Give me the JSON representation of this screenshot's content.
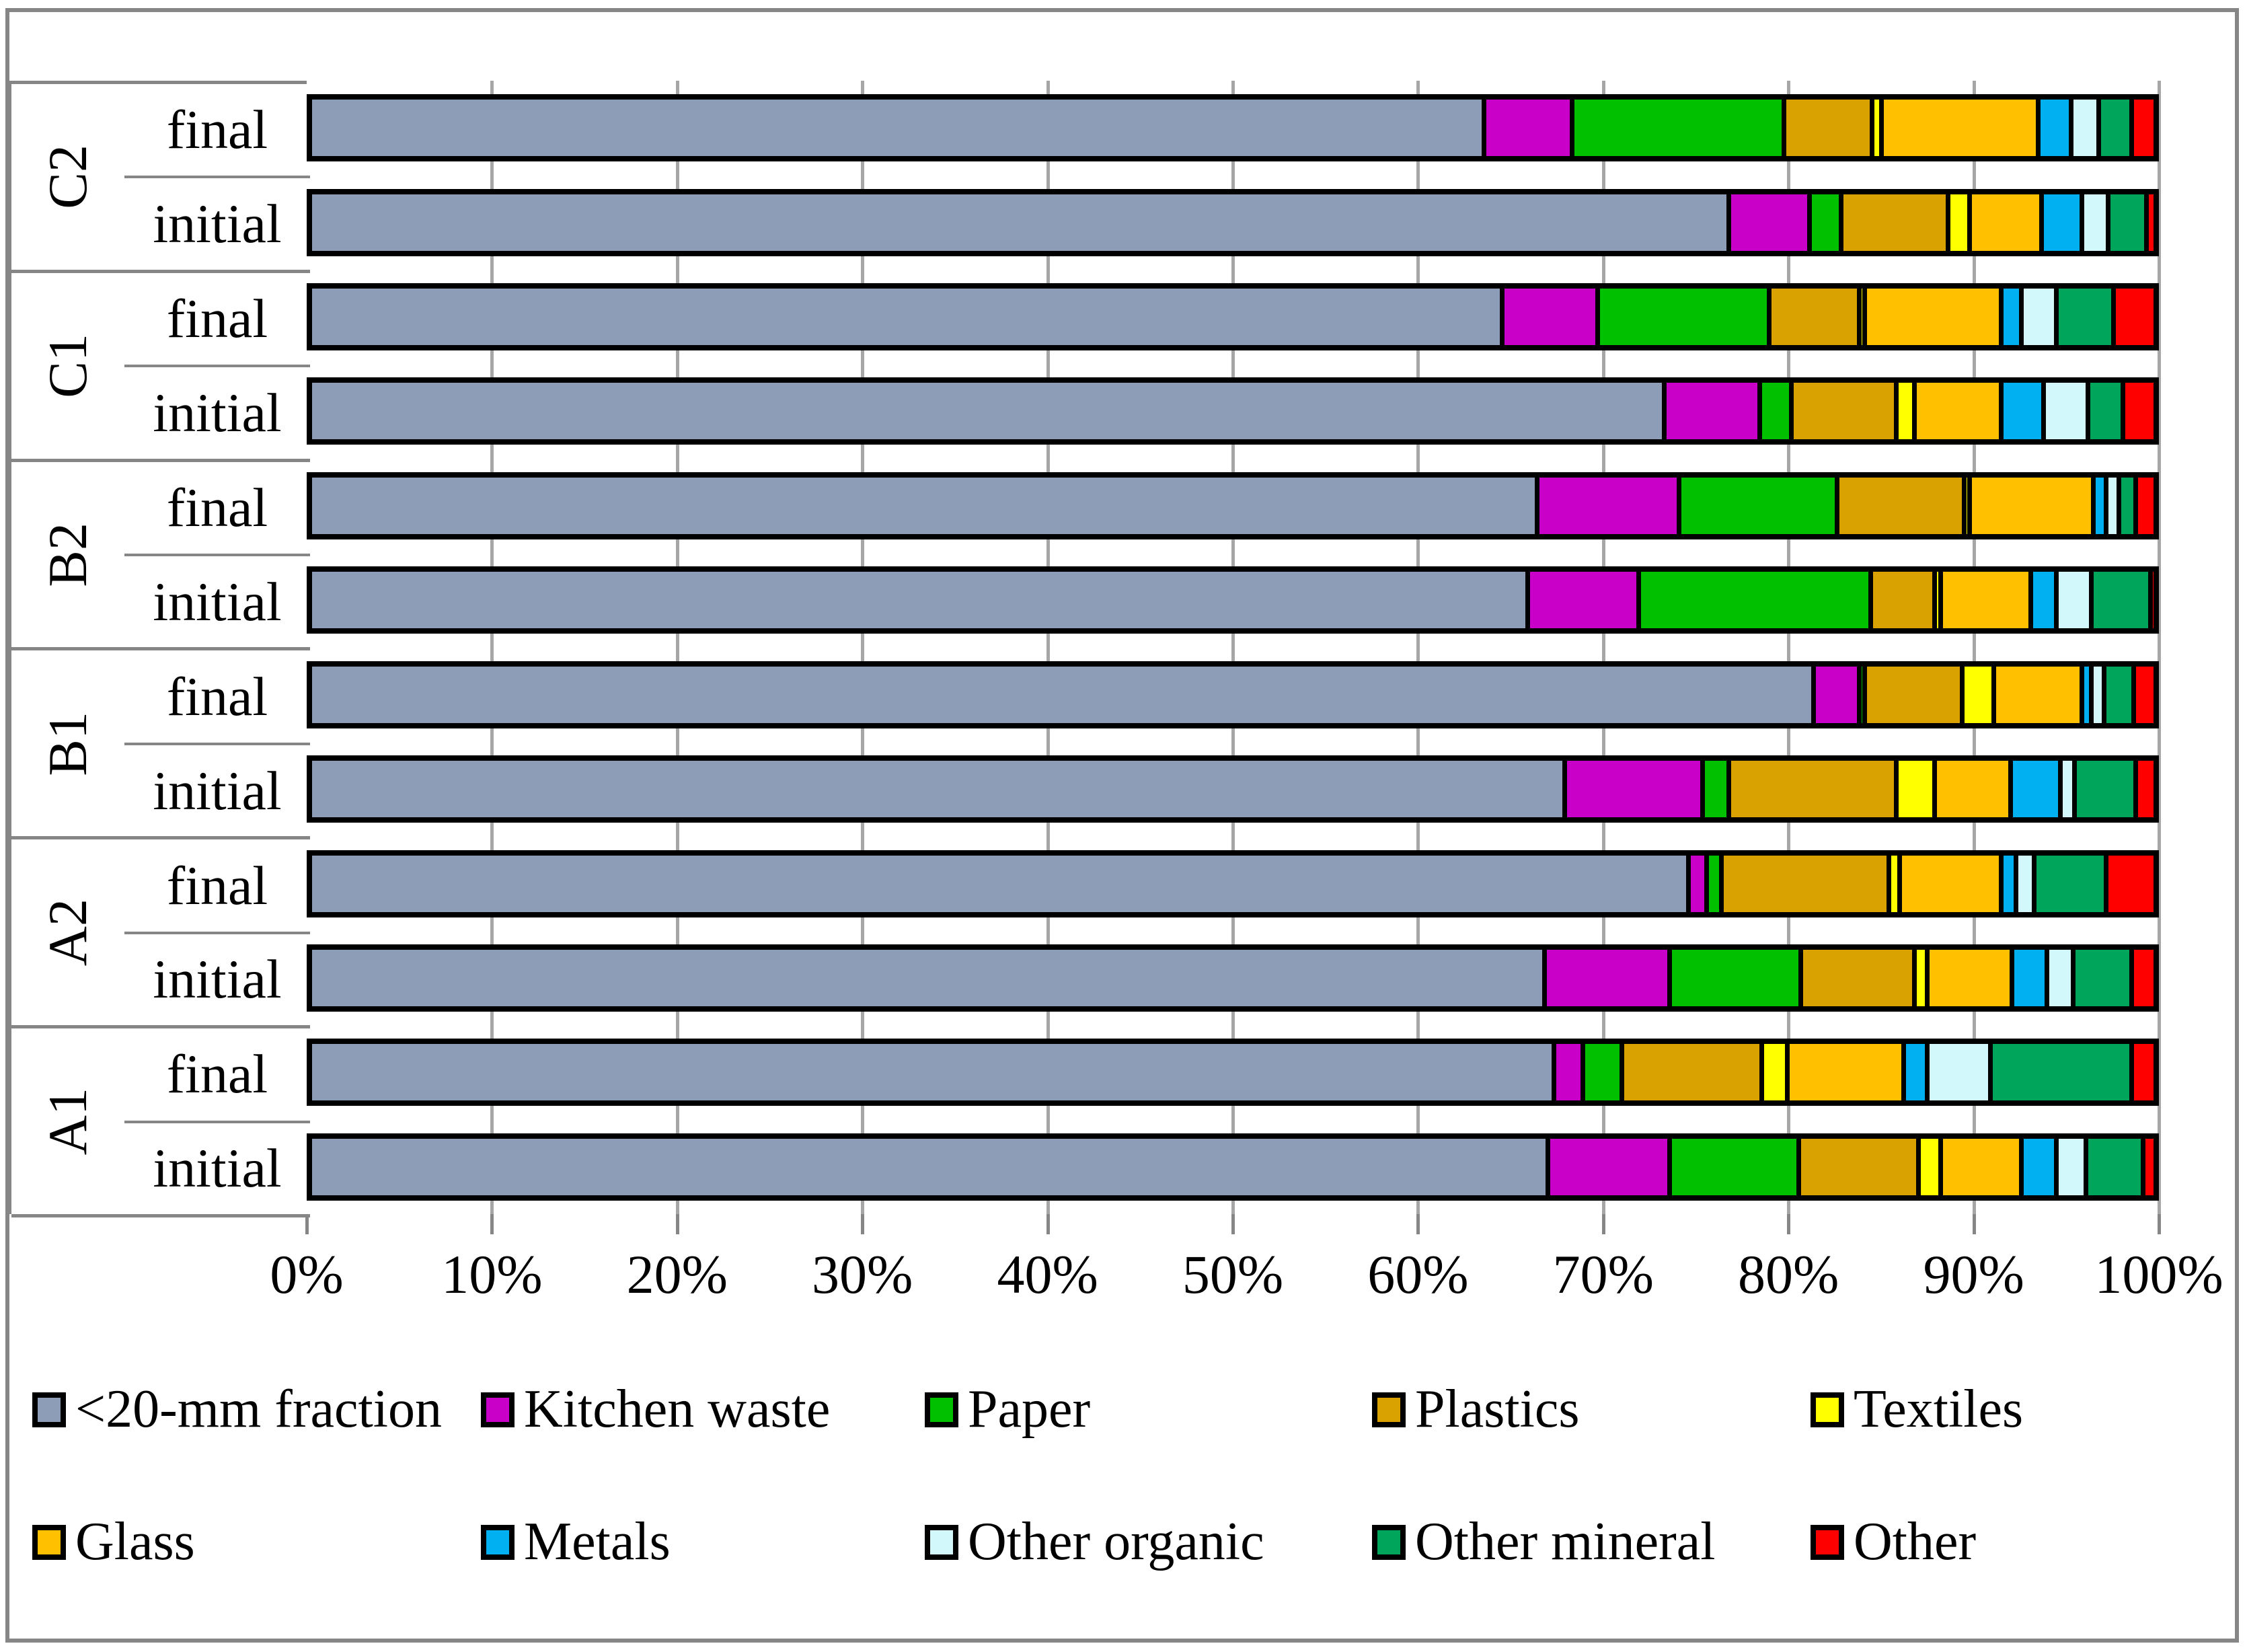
{
  "figure": {
    "border_color": "#868686",
    "grid_color": "#A6A6A6",
    "background": "#ffffff"
  },
  "axis": {
    "tick_labels": [
      "0%",
      "10%",
      "20%",
      "30%",
      "40%",
      "50%",
      "60%",
      "70%",
      "80%",
      "90%",
      "100%"
    ],
    "min": 0,
    "max": 100
  },
  "chart_data": {
    "type": "bar",
    "orientation": "horizontal-stacked",
    "xlabel": "",
    "ylabel": "",
    "xlim": [
      0,
      100
    ],
    "grid": true,
    "legend_position": "bottom",
    "groups": [
      "C2",
      "C1",
      "B2",
      "B1",
      "A2",
      "A1"
    ],
    "row_labels": [
      "final",
      "initial"
    ],
    "categories": [
      "C2 final",
      "C2 initial",
      "C1 final",
      "C1 initial",
      "B2 final",
      "B2 initial",
      "B1 final",
      "B1 initial",
      "A2 final",
      "A2 initial",
      "A1 final",
      "A1 initial"
    ],
    "series": [
      {
        "name": "<20-mm fraction",
        "color": "#8D9CB7",
        "values": [
          63.5,
          76.8,
          64.5,
          73.3,
          66.4,
          65.9,
          81.4,
          67.9,
          74.6,
          66.8,
          67.3,
          67.0
        ]
      },
      {
        "name": "Kitchen waste",
        "color": "#C800C8",
        "values": [
          4.8,
          4.4,
          5.2,
          5.2,
          7.7,
          6.0,
          2.5,
          7.5,
          1.0,
          6.8,
          1.6,
          6.6
        ]
      },
      {
        "name": "Paper",
        "color": "#00C000",
        "values": [
          11.5,
          1.7,
          9.3,
          1.7,
          8.6,
          12.6,
          0.3,
          1.4,
          0.8,
          7.1,
          2.1,
          7.0
        ]
      },
      {
        "name": "Plastics",
        "color": "#D9A200",
        "values": [
          4.8,
          5.8,
          4.9,
          5.7,
          6.9,
          3.5,
          5.3,
          9.1,
          9.1,
          6.2,
          7.6,
          6.5
        ]
      },
      {
        "name": "Textiles",
        "color": "#FFFF00",
        "values": [
          0.5,
          1.2,
          0.3,
          1.0,
          0.3,
          0.3,
          1.7,
          2.1,
          0.6,
          0.7,
          1.4,
          1.2
        ]
      },
      {
        "name": "Glass",
        "color": "#FFC000",
        "values": [
          8.5,
          3.9,
          7.4,
          4.7,
          6.7,
          4.9,
          4.8,
          4.1,
          5.5,
          4.6,
          6.3,
          4.4
        ]
      },
      {
        "name": "Metals",
        "color": "#00B0F0",
        "values": [
          1.8,
          2.2,
          1.1,
          2.3,
          0.7,
          1.4,
          0.5,
          2.7,
          0.8,
          1.9,
          1.3,
          1.9
        ]
      },
      {
        "name": "Other organic",
        "color": "#D2F8FC",
        "values": [
          1.5,
          1.4,
          1.9,
          2.4,
          0.7,
          1.9,
          0.7,
          0.8,
          1.0,
          1.4,
          3.4,
          1.6
        ]
      },
      {
        "name": "Other mineral",
        "color": "#00A55C",
        "values": [
          1.8,
          2.1,
          3.1,
          1.9,
          0.9,
          3.2,
          1.6,
          3.3,
          3.9,
          3.2,
          7.7,
          3.1
        ]
      },
      {
        "name": "Other",
        "color": "#FF0000",
        "values": [
          1.3,
          0.5,
          2.3,
          1.8,
          1.1,
          0.3,
          1.2,
          1.1,
          2.7,
          1.3,
          1.3,
          0.7
        ]
      }
    ]
  },
  "legend": {
    "rows": [
      [
        "<20-mm fraction",
        "Kitchen waste",
        "Paper",
        "Plastics",
        "Textiles"
      ],
      [
        "Glass",
        "Metals",
        "Other organic",
        "Other mineral",
        "Other"
      ]
    ]
  }
}
